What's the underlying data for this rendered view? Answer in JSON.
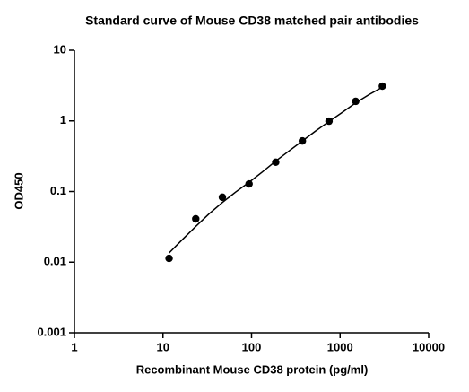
{
  "chart_data": {
    "type": "scatter",
    "title": "Standard curve of Mouse CD38 matched pair antibodies",
    "x_label": "Recombinant Mouse CD38 protein (pg/ml)",
    "y_label": "OD450",
    "x_scale": "log",
    "y_scale": "log",
    "xlim": [
      1,
      10000
    ],
    "xticks": [
      1,
      10,
      100,
      1000,
      10000
    ],
    "ylim": [
      0.001,
      10
    ],
    "yticks": [
      0.001,
      0.01,
      0.1,
      1,
      10
    ],
    "series": [
      {
        "color": "#000000",
        "x": [
          11.72,
          23.44,
          46.88,
          93.75,
          187.5,
          375,
          750,
          1500,
          3000
        ],
        "values": [
          0.0113,
          0.041,
          0.083,
          0.128,
          0.26,
          0.52,
          0.99,
          1.89,
          3.1
        ]
      }
    ],
    "fit": {
      "color": "#000000",
      "x": [
        11.72,
        16,
        23.44,
        33,
        46.88,
        66,
        93.75,
        133,
        187.5,
        265,
        375,
        530,
        750,
        1060,
        1500,
        2120,
        3000
      ],
      "values": [
        0.0135,
        0.02,
        0.032,
        0.048,
        0.07,
        0.098,
        0.135,
        0.19,
        0.27,
        0.375,
        0.52,
        0.72,
        0.98,
        1.32,
        1.8,
        2.35,
        3.0
      ]
    }
  }
}
